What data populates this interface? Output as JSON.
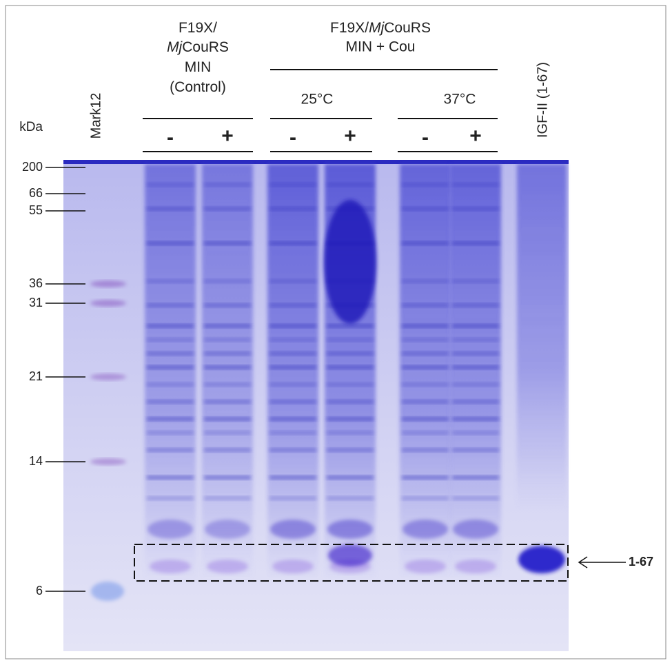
{
  "figure": {
    "unit": "kDa",
    "marker_lane": "Mark12",
    "markers": [
      "200",
      "66",
      "55",
      "36",
      "31",
      "21",
      "14",
      "6"
    ],
    "control": {
      "lines": [
        [
          "F19X/"
        ],
        [
          "Mj",
          "CouRS"
        ],
        [
          "MIN"
        ],
        [
          "(Control)"
        ]
      ],
      "signs": [
        "-",
        "+"
      ]
    },
    "treated": {
      "title": [
        "F19X/",
        "Mj",
        "CouRS"
      ],
      "subtitle": "MIN + Cou",
      "temperatures": [
        {
          "label": "25°C",
          "signs": [
            "-",
            "+"
          ]
        },
        {
          "label": "37°C",
          "signs": [
            "-",
            "+"
          ]
        }
      ]
    },
    "standard_lane": "IGF-II  (1-67)",
    "annotation": "1-67"
  }
}
